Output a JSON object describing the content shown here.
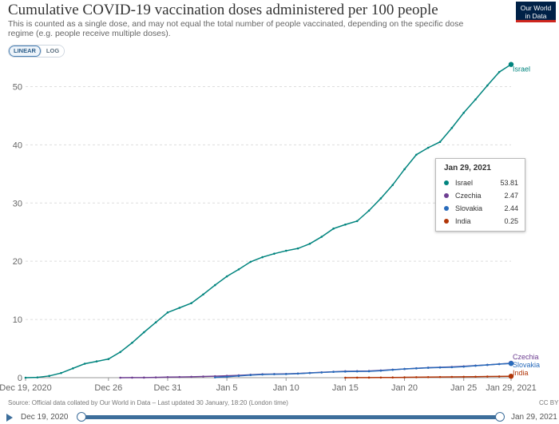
{
  "header": {
    "title": "Cumulative COVID-19 vaccination doses administered per 100 people",
    "subtitle": "This is counted as a single dose, and may not equal the total number of people vaccinated, depending on the specific dose regime (e.g. people receive multiple doses).",
    "logo_line1": "Our World",
    "logo_line2": "in Data"
  },
  "controls": {
    "linear_label": "LINEAR",
    "log_label": "LOG",
    "active_scale": "linear"
  },
  "tooltip": {
    "date": "Jan 29, 2021",
    "rows": [
      {
        "name": "Israel",
        "value": "53.81",
        "color": "#00847e"
      },
      {
        "name": "Czechia",
        "value": "2.47",
        "color": "#6d3e91"
      },
      {
        "name": "Slovakia",
        "value": "2.44",
        "color": "#286bbb"
      },
      {
        "name": "India",
        "value": "0.25",
        "color": "#b13507"
      }
    ]
  },
  "footer": {
    "source": "Source: Official data collated by Our World in Data – Last updated 30 January, 18:20 (London time)",
    "license": "CC BY"
  },
  "timeline": {
    "start_label": "Dec 19, 2020",
    "end_label": "Jan 29, 2021"
  },
  "chart_data": {
    "type": "line",
    "title": "Cumulative COVID-19 vaccination doses administered per 100 people",
    "xlabel": "",
    "ylabel": "",
    "x_ticks": [
      "Dec 19, 2020",
      "Dec 26",
      "Dec 31",
      "Jan 5",
      "Jan 10",
      "Jan 15",
      "Jan 20",
      "Jan 25",
      "Jan 29, 2021"
    ],
    "x_tick_days": [
      0,
      7,
      12,
      17,
      22,
      27,
      32,
      37,
      41
    ],
    "y_ticks": [
      0,
      10,
      20,
      30,
      40,
      50
    ],
    "xlim": [
      "2020-12-19",
      "2021-01-29"
    ],
    "ylim": [
      0,
      55
    ],
    "grid": "horizontal dashed",
    "legend": "end-of-line labels",
    "series": [
      {
        "name": "Israel",
        "color": "#00847e",
        "x": [
          "2020-12-19",
          "2020-12-20",
          "2020-12-21",
          "2020-12-22",
          "2020-12-23",
          "2020-12-24",
          "2020-12-25",
          "2020-12-26",
          "2020-12-27",
          "2020-12-28",
          "2020-12-29",
          "2020-12-30",
          "2020-12-31",
          "2021-01-01",
          "2021-01-02",
          "2021-01-03",
          "2021-01-04",
          "2021-01-05",
          "2021-01-06",
          "2021-01-07",
          "2021-01-08",
          "2021-01-09",
          "2021-01-10",
          "2021-01-11",
          "2021-01-12",
          "2021-01-13",
          "2021-01-14",
          "2021-01-15",
          "2021-01-16",
          "2021-01-17",
          "2021-01-18",
          "2021-01-19",
          "2021-01-20",
          "2021-01-21",
          "2021-01-22",
          "2021-01-23",
          "2021-01-24",
          "2021-01-25",
          "2021-01-26",
          "2021-01-27",
          "2021-01-28",
          "2021-01-29"
        ],
        "values": [
          0.0,
          0.05,
          0.3,
          0.8,
          1.6,
          2.4,
          2.8,
          3.2,
          4.4,
          6.0,
          7.8,
          9.5,
          11.2,
          12.0,
          12.8,
          14.3,
          15.9,
          17.4,
          18.6,
          19.9,
          20.7,
          21.3,
          21.8,
          22.2,
          23.0,
          24.2,
          25.6,
          26.3,
          26.9,
          28.7,
          30.8,
          33.1,
          35.8,
          38.3,
          39.5,
          40.5,
          42.9,
          45.5,
          47.8,
          50.2,
          52.5,
          53.81
        ]
      },
      {
        "name": "Czechia",
        "color": "#6d3e91",
        "x": [
          "2020-12-27",
          "2020-12-28",
          "2020-12-29",
          "2020-12-30",
          "2020-12-31",
          "2021-01-01",
          "2021-01-02",
          "2021-01-03",
          "2021-01-04",
          "2021-01-05",
          "2021-01-06",
          "2021-01-07",
          "2021-01-08",
          "2021-01-09",
          "2021-01-10",
          "2021-01-11",
          "2021-01-12",
          "2021-01-13",
          "2021-01-14",
          "2021-01-15",
          "2021-01-16",
          "2021-01-17",
          "2021-01-18",
          "2021-01-19",
          "2021-01-20",
          "2021-01-21",
          "2021-01-22",
          "2021-01-23",
          "2021-01-24",
          "2021-01-25",
          "2021-01-26",
          "2021-01-27",
          "2021-01-28",
          "2021-01-29"
        ],
        "values": [
          0.0,
          0.01,
          0.02,
          0.05,
          0.1,
          0.12,
          0.15,
          0.2,
          0.25,
          0.32,
          0.4,
          0.5,
          0.6,
          0.62,
          0.65,
          0.72,
          0.82,
          0.92,
          1.02,
          1.1,
          1.12,
          1.15,
          1.25,
          1.38,
          1.5,
          1.62,
          1.72,
          1.78,
          1.85,
          1.95,
          2.08,
          2.2,
          2.35,
          2.47
        ]
      },
      {
        "name": "Slovakia",
        "color": "#286bbb",
        "x": [
          "2021-01-04",
          "2021-01-05",
          "2021-01-06",
          "2021-01-07",
          "2021-01-08",
          "2021-01-09",
          "2021-01-10",
          "2021-01-11",
          "2021-01-12",
          "2021-01-13",
          "2021-01-14",
          "2021-01-15",
          "2021-01-16",
          "2021-01-17",
          "2021-01-18",
          "2021-01-19",
          "2021-01-20",
          "2021-01-21",
          "2021-01-22",
          "2021-01-23",
          "2021-01-24",
          "2021-01-25",
          "2021-01-26",
          "2021-01-27",
          "2021-01-28",
          "2021-01-29"
        ],
        "values": [
          0.05,
          0.15,
          0.3,
          0.45,
          0.55,
          0.6,
          0.62,
          0.7,
          0.8,
          0.9,
          1.0,
          1.05,
          1.08,
          1.1,
          1.2,
          1.35,
          1.5,
          1.6,
          1.7,
          1.75,
          1.8,
          1.9,
          2.05,
          2.2,
          2.33,
          2.44
        ]
      },
      {
        "name": "India",
        "color": "#b13507",
        "x": [
          "2021-01-15",
          "2021-01-16",
          "2021-01-17",
          "2021-01-18",
          "2021-01-19",
          "2021-01-20",
          "2021-01-21",
          "2021-01-22",
          "2021-01-23",
          "2021-01-24",
          "2021-01-25",
          "2021-01-26",
          "2021-01-27",
          "2021-01-28",
          "2021-01-29"
        ],
        "values": [
          0.0,
          0.01,
          0.02,
          0.03,
          0.04,
          0.06,
          0.08,
          0.1,
          0.12,
          0.13,
          0.15,
          0.17,
          0.2,
          0.22,
          0.25
        ]
      }
    ]
  }
}
